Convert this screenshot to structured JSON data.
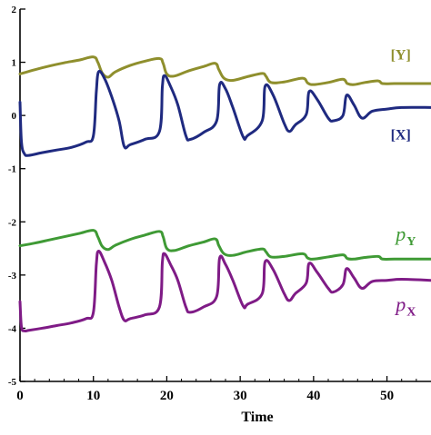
{
  "chart_data": {
    "type": "line",
    "title": "",
    "xlabel": "Time",
    "ylabel": "",
    "xlim": [
      0,
      56
    ],
    "ylim": [
      -5,
      2
    ],
    "xticks": [
      0,
      10,
      20,
      30,
      40,
      50
    ],
    "xtick_labels": [
      "0",
      "10",
      "20",
      "30",
      "40",
      "50"
    ],
    "yticks": [
      2,
      1,
      0,
      -1,
      -2,
      -3,
      -4,
      -5
    ],
    "ytick_labels": [
      "2",
      "1",
      "0",
      "-1",
      "-2",
      "-3",
      "-4",
      "-5"
    ],
    "grid": false,
    "legend": "inline labels at right",
    "series": [
      {
        "name": "[Y]",
        "color": "#8f8f2d",
        "x": [
          0,
          2,
          4,
          6,
          8,
          10,
          10.6,
          11.2,
          12,
          13,
          15,
          17,
          19,
          19.5,
          20,
          21,
          23,
          25,
          26.6,
          27.1,
          27.8,
          29,
          31,
          33,
          33.5,
          34.2,
          36,
          38.5,
          39.2,
          40,
          42,
          44,
          44.6,
          45.5,
          47,
          48.8,
          49.4,
          51,
          52,
          53,
          56
        ],
        "values": [
          0.78,
          0.86,
          0.93,
          0.99,
          1.04,
          1.1,
          1.0,
          0.8,
          0.72,
          0.82,
          0.94,
          1.02,
          1.07,
          0.98,
          0.78,
          0.74,
          0.84,
          0.92,
          0.98,
          0.86,
          0.7,
          0.66,
          0.73,
          0.79,
          0.74,
          0.62,
          0.63,
          0.7,
          0.61,
          0.58,
          0.62,
          0.68,
          0.6,
          0.58,
          0.62,
          0.65,
          0.6,
          0.6,
          0.6,
          0.6,
          0.6
        ]
      },
      {
        "name": "[X]",
        "color": "#1f2a80",
        "x": [
          0,
          0.2,
          0.6,
          1.2,
          3,
          5,
          7,
          9,
          10,
          10.4,
          10.7,
          11.5,
          12.5,
          13.5,
          14.2,
          15,
          17,
          19,
          19.4,
          19.7,
          20.5,
          21.5,
          22.6,
          23.2,
          25,
          26.8,
          27.2,
          28,
          29,
          30.4,
          31,
          33,
          33.4,
          34.5,
          36,
          36.7,
          37.5,
          39,
          39.4,
          40.5,
          42,
          42.7,
          44,
          44.5,
          45.5,
          46.6,
          48,
          50,
          52,
          56
        ],
        "values": [
          0.25,
          -0.5,
          -0.72,
          -0.75,
          -0.7,
          -0.65,
          -0.6,
          -0.5,
          -0.38,
          0.45,
          0.82,
          0.7,
          0.35,
          -0.1,
          -0.58,
          -0.55,
          -0.45,
          -0.3,
          0.55,
          0.75,
          0.55,
          0.2,
          -0.38,
          -0.45,
          -0.32,
          -0.1,
          0.58,
          0.5,
          0.15,
          -0.4,
          -0.38,
          -0.1,
          0.55,
          0.38,
          -0.15,
          -0.3,
          -0.18,
          0.02,
          0.45,
          0.3,
          -0.05,
          -0.1,
          0.0,
          0.38,
          0.2,
          -0.05,
          0.08,
          0.12,
          0.15,
          0.15
        ]
      },
      {
        "name": "pY",
        "color": "#3f9a35",
        "x": [
          0,
          2,
          4,
          6,
          8,
          10,
          10.6,
          11.2,
          12,
          13,
          15,
          17,
          19,
          19.5,
          20,
          21,
          23,
          25,
          26.6,
          27.1,
          27.8,
          29,
          31,
          33,
          33.5,
          34.2,
          36,
          38.5,
          39.2,
          40,
          42,
          44,
          44.6,
          45.5,
          47,
          48.8,
          49.4,
          51,
          53,
          56
        ],
        "values": [
          -2.45,
          -2.4,
          -2.34,
          -2.28,
          -2.22,
          -2.16,
          -2.28,
          -2.46,
          -2.52,
          -2.44,
          -2.33,
          -2.25,
          -2.18,
          -2.28,
          -2.5,
          -2.54,
          -2.45,
          -2.38,
          -2.32,
          -2.45,
          -2.6,
          -2.63,
          -2.56,
          -2.51,
          -2.56,
          -2.66,
          -2.65,
          -2.6,
          -2.68,
          -2.7,
          -2.66,
          -2.62,
          -2.69,
          -2.7,
          -2.67,
          -2.65,
          -2.7,
          -2.7,
          -2.7,
          -2.7
        ]
      },
      {
        "name": "pX",
        "color": "#7f1b86",
        "x": [
          0,
          0.2,
          0.6,
          1.2,
          3,
          5,
          7,
          9,
          10,
          10.4,
          10.7,
          11.5,
          12.5,
          13.5,
          14.2,
          15,
          17,
          19,
          19.4,
          19.7,
          20.5,
          21.5,
          22.6,
          23.2,
          25,
          26.8,
          27.2,
          28,
          29,
          30.4,
          31,
          33,
          33.4,
          34.5,
          36,
          36.7,
          37.5,
          39,
          39.4,
          40.5,
          42,
          42.7,
          44,
          44.5,
          45.5,
          46.6,
          48,
          50,
          52,
          56
        ],
        "values": [
          -3.5,
          -3.98,
          -4.05,
          -4.04,
          -4.0,
          -3.95,
          -3.9,
          -3.82,
          -3.7,
          -2.8,
          -2.55,
          -2.75,
          -3.1,
          -3.6,
          -3.85,
          -3.82,
          -3.75,
          -3.6,
          -2.75,
          -2.6,
          -2.8,
          -3.1,
          -3.6,
          -3.7,
          -3.6,
          -3.4,
          -2.68,
          -2.8,
          -3.1,
          -3.58,
          -3.55,
          -3.35,
          -2.75,
          -2.9,
          -3.35,
          -3.48,
          -3.35,
          -3.15,
          -2.78,
          -2.95,
          -3.25,
          -3.32,
          -3.18,
          -2.88,
          -3.05,
          -3.25,
          -3.12,
          -3.1,
          -3.08,
          -3.1
        ]
      }
    ],
    "annotations": [
      {
        "label": "[Y]",
        "x": 50.5,
        "y": 1.05,
        "anchor": "start",
        "italic": false,
        "sub": ""
      },
      {
        "label": "[X]",
        "x": 50.5,
        "y": -0.45,
        "anchor": "start",
        "italic": false,
        "sub": ""
      },
      {
        "label": "p",
        "x": 51.2,
        "y": -2.35,
        "anchor": "start",
        "italic": true,
        "sub": "Y"
      },
      {
        "label": "p",
        "x": 51.2,
        "y": -3.68,
        "anchor": "start",
        "italic": true,
        "sub": "X"
      }
    ]
  }
}
